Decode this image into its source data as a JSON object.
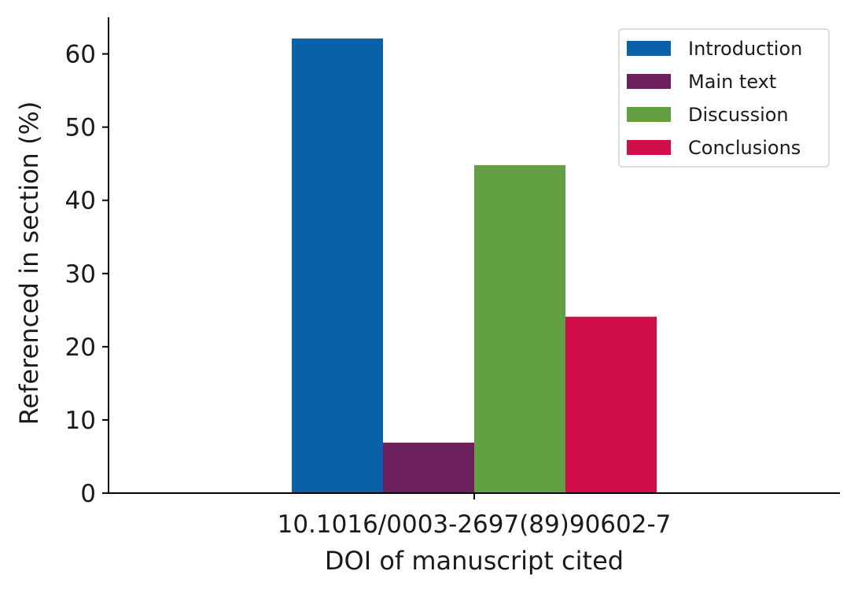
{
  "chart_data": {
    "type": "bar",
    "categories": [
      "10.1016/0003-2697(89)90602-7"
    ],
    "series": [
      {
        "name": "Introduction",
        "values": [
          62.1
        ],
        "color": "#0b60aa"
      },
      {
        "name": "Main text",
        "values": [
          6.9
        ],
        "color": "#6e1f5e"
      },
      {
        "name": "Discussion",
        "values": [
          44.8
        ],
        "color": "#62a043"
      },
      {
        "name": "Conclusions",
        "values": [
          24.1
        ],
        "color": "#d10d4a"
      }
    ],
    "title": "",
    "xlabel": "DOI of manuscript cited",
    "ylabel": "Referenced in section (%)",
    "ylim": [
      0,
      65
    ],
    "yticks": [
      0,
      10,
      20,
      30,
      40,
      50,
      60
    ],
    "grid": false,
    "legend": "top-right"
  }
}
